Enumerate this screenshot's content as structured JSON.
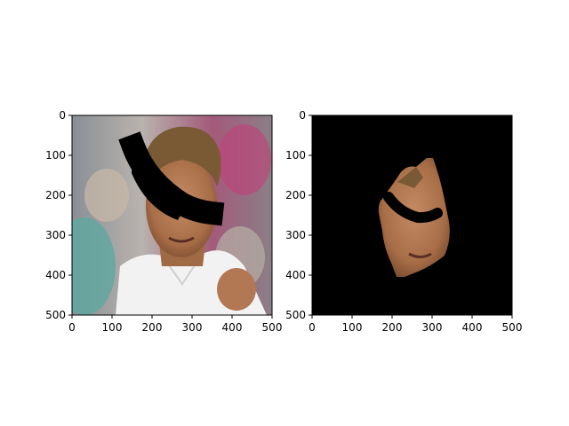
{
  "chart_data": [
    {
      "type": "image",
      "title": "",
      "xlabel": "",
      "ylabel": "",
      "xlim": [
        0,
        500
      ],
      "ylim": [
        500,
        0
      ],
      "xticks": [
        0,
        100,
        200,
        300,
        400,
        500
      ],
      "yticks": [
        0,
        100,
        200,
        300,
        400,
        500
      ],
      "content": "photo-face-with-black-mask"
    },
    {
      "type": "image",
      "title": "",
      "xlabel": "",
      "ylabel": "",
      "xlim": [
        0,
        500
      ],
      "ylim": [
        500,
        0
      ],
      "xticks": [
        0,
        100,
        200,
        300,
        400,
        500
      ],
      "yticks": [
        0,
        100,
        200,
        300,
        400,
        500
      ],
      "content": "segmented-face-on-black"
    }
  ],
  "colors": {
    "axis": "#000000",
    "mask": "#000000",
    "background_blur_left": "#9aa0a6",
    "skin": "#b07a55",
    "hair": "#7a5a35",
    "shirt": "#f4f4f4"
  }
}
